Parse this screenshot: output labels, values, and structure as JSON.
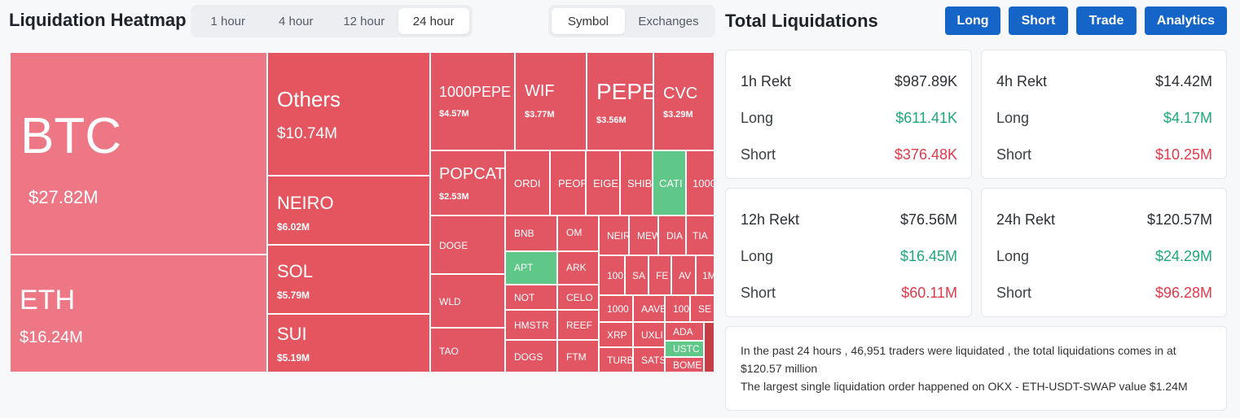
{
  "heatmap": {
    "title": "Liquidation Heatmap",
    "time_options": [
      "1 hour",
      "4 hour",
      "12 hour",
      "24 hour"
    ],
    "time_selected": "24 hour",
    "view_options": [
      "Symbol",
      "Exchanges"
    ],
    "view_selected": "Symbol"
  },
  "total": {
    "title": "Total Liquidations",
    "buttons": [
      "Long",
      "Short",
      "Trade",
      "Analytics"
    ]
  },
  "tiles": [
    {
      "sym": "BTC",
      "val": "$27.82M",
      "color": "#ed7785"
    },
    {
      "sym": "ETH",
      "val": "$16.24M",
      "color": "#ed7785"
    },
    {
      "sym": "Others",
      "val": "$10.74M",
      "color": "#e4555f"
    },
    {
      "sym": "NEIRO",
      "val": "$6.02M",
      "color": "#e4555f"
    },
    {
      "sym": "SOL",
      "val": "$5.79M",
      "color": "#e4555f"
    },
    {
      "sym": "SUI",
      "val": "$5.19M",
      "color": "#e4555f"
    },
    {
      "sym": "1000PEPE",
      "val": "$4.57M",
      "color": "#e25563"
    },
    {
      "sym": "WIF",
      "val": "$3.77M",
      "color": "#e25563"
    },
    {
      "sym": "PEPE",
      "val": "$3.56M",
      "color": "#e25563"
    },
    {
      "sym": "CVC",
      "val": "$3.29M",
      "color": "#e25563"
    },
    {
      "sym": "POPCAT",
      "val": "$2.53M",
      "color": "#e25563"
    },
    {
      "sym": "ORDI",
      "val": "",
      "color": "#e25563"
    },
    {
      "sym": "PEOPLE",
      "val": "",
      "color": "#e25563"
    },
    {
      "sym": "EIGEN",
      "val": "",
      "color": "#e25563"
    },
    {
      "sym": "SHIB",
      "val": "",
      "color": "#e25563"
    },
    {
      "sym": "CATI",
      "val": "",
      "color": "#5fc889"
    },
    {
      "sym": "1000",
      "val": "",
      "color": "#e25563"
    },
    {
      "sym": "DOGE",
      "val": "",
      "color": "#e25563"
    },
    {
      "sym": "WLD",
      "val": "",
      "color": "#e25563"
    },
    {
      "sym": "TAO",
      "val": "",
      "color": "#e25563"
    },
    {
      "sym": "BNB",
      "val": "",
      "color": "#e25563"
    },
    {
      "sym": "OM",
      "val": "",
      "color": "#e25563"
    },
    {
      "sym": "APT",
      "val": "",
      "color": "#5fc889"
    },
    {
      "sym": "ARK",
      "val": "",
      "color": "#e25563"
    },
    {
      "sym": "NOT",
      "val": "",
      "color": "#e25563"
    },
    {
      "sym": "CELO",
      "val": "",
      "color": "#e25563"
    },
    {
      "sym": "HMSTR",
      "val": "",
      "color": "#e25563"
    },
    {
      "sym": "REEF",
      "val": "",
      "color": "#e25563"
    },
    {
      "sym": "DOGS",
      "val": "",
      "color": "#e25563"
    },
    {
      "sym": "FTM",
      "val": "",
      "color": "#e25563"
    },
    {
      "sym": "NEIRO",
      "val": "",
      "color": "#e25563"
    },
    {
      "sym": "MEW",
      "val": "",
      "color": "#e25563"
    },
    {
      "sym": "DIA",
      "val": "",
      "color": "#e25563"
    },
    {
      "sym": "TIA",
      "val": "",
      "color": "#e25563"
    },
    {
      "sym": "100",
      "val": "",
      "color": "#e25563"
    },
    {
      "sym": "SA",
      "val": "",
      "color": "#e25563"
    },
    {
      "sym": "FE",
      "val": "",
      "color": "#e25563"
    },
    {
      "sym": "AV",
      "val": "",
      "color": "#e25563"
    },
    {
      "sym": "1M",
      "val": "",
      "color": "#e25563"
    },
    {
      "sym": "1000",
      "val": "",
      "color": "#e25563"
    },
    {
      "sym": "AAVE",
      "val": "",
      "color": "#e25563"
    },
    {
      "sym": "100",
      "val": "",
      "color": "#e25563"
    },
    {
      "sym": "SE",
      "val": "",
      "color": "#e25563"
    },
    {
      "sym": "XRP",
      "val": "",
      "color": "#e25563"
    },
    {
      "sym": "UXLI",
      "val": "",
      "color": "#e25563"
    },
    {
      "sym": "ADA",
      "val": "",
      "color": "#e25563"
    },
    {
      "sym": "",
      "val": "",
      "color": "#c53d47"
    },
    {
      "sym": "TURB",
      "val": "",
      "color": "#e25563"
    },
    {
      "sym": "SATS",
      "val": "",
      "color": "#e25563"
    },
    {
      "sym": "USTC",
      "val": "",
      "color": "#5fc889"
    },
    {
      "sym": "BOME",
      "val": "",
      "color": "#e25563"
    }
  ],
  "cards": [
    {
      "title": "1h Rekt",
      "total": "$987.89K",
      "long_label": "Long",
      "long": "$611.41K",
      "short_label": "Short",
      "short": "$376.48K"
    },
    {
      "title": "4h Rekt",
      "total": "$14.42M",
      "long_label": "Long",
      "long": "$4.17M",
      "short_label": "Short",
      "short": "$10.25M"
    },
    {
      "title": "12h Rekt",
      "total": "$76.56M",
      "long_label": "Long",
      "long": "$16.45M",
      "short_label": "Short",
      "short": "$60.11M"
    },
    {
      "title": "24h Rekt",
      "total": "$120.57M",
      "long_label": "Long",
      "long": "$24.29M",
      "short_label": "Short",
      "short": "$96.28M"
    }
  ],
  "summary": {
    "line1": "In the past 24 hours , 46,951 traders were liquidated , the total liquidations comes in at $120.57 million",
    "line2": "The largest single liquidation order happened on OKX - ETH-USDT-SWAP value $1.24M"
  }
}
